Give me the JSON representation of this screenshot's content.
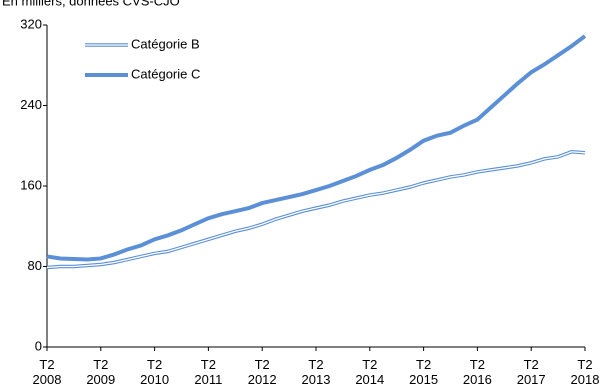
{
  "chart_data": {
    "type": "line",
    "subtitle": "En milliers, données CVS-CJO",
    "categories": [
      "T2 2008",
      null,
      null,
      null,
      "T2 2009",
      null,
      null,
      null,
      "T2 2010",
      null,
      null,
      null,
      "T2 2011",
      null,
      null,
      null,
      "T2 2012",
      null,
      null,
      null,
      "T2 2013",
      null,
      null,
      null,
      "T2 2014",
      null,
      null,
      null,
      "T2 2015",
      null,
      null,
      null,
      "T2 2016",
      null,
      null,
      null,
      "T2 2017",
      null,
      null,
      null,
      "T2 2018"
    ],
    "series": [
      {
        "name": "Catégorie B",
        "color": "#5b8fd6",
        "style": "double",
        "values": [
          79,
          80,
          80,
          81,
          82,
          84,
          87,
          90,
          93,
          95,
          99,
          103,
          107,
          111,
          115,
          118,
          122,
          127,
          131,
          135,
          138,
          141,
          145,
          148,
          151,
          153,
          156,
          159,
          163,
          166,
          169,
          171,
          174,
          176,
          178,
          180,
          183,
          187,
          189,
          194,
          193
        ]
      },
      {
        "name": "Catégorie C",
        "color": "#5b8fd6",
        "style": "thick",
        "values": [
          90,
          88,
          87.5,
          87,
          88,
          92,
          97,
          101,
          107,
          111,
          116,
          122,
          128,
          132,
          135,
          138,
          143,
          146,
          149,
          152,
          156,
          160,
          165,
          170,
          176,
          181,
          188,
          196,
          205,
          210,
          213,
          220,
          226,
          238,
          250,
          262,
          273,
          281,
          290,
          299,
          309
        ]
      }
    ],
    "ylim": [
      0,
      320
    ],
    "yticks": [
      0,
      80,
      160,
      240,
      320
    ],
    "grid": false,
    "legend": "top-left"
  }
}
